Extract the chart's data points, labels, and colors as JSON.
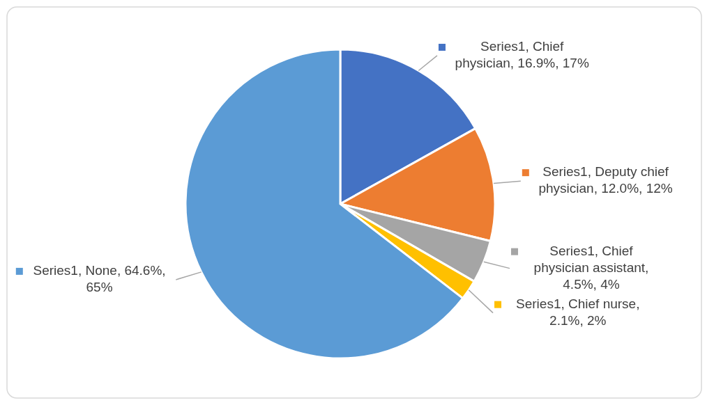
{
  "chart_data": {
    "type": "pie",
    "categories": [
      "Series1, Chief physician, 16.9%, 17%",
      "Series1, Deputy chief physician, 12.0%, 12%",
      "Series1, Chief physician assistant, 4.5%, 4%",
      "Series1, Chief nurse, 2.1%, 2%",
      "Series1, None, 64.6%, 65%"
    ],
    "values": [
      16.9,
      12.0,
      4.5,
      2.1,
      64.6
    ],
    "colors": [
      "#4472c4",
      "#ed7d31",
      "#a5a5a5",
      "#ffc000",
      "#5b9bd5"
    ],
    "legend": "right"
  }
}
